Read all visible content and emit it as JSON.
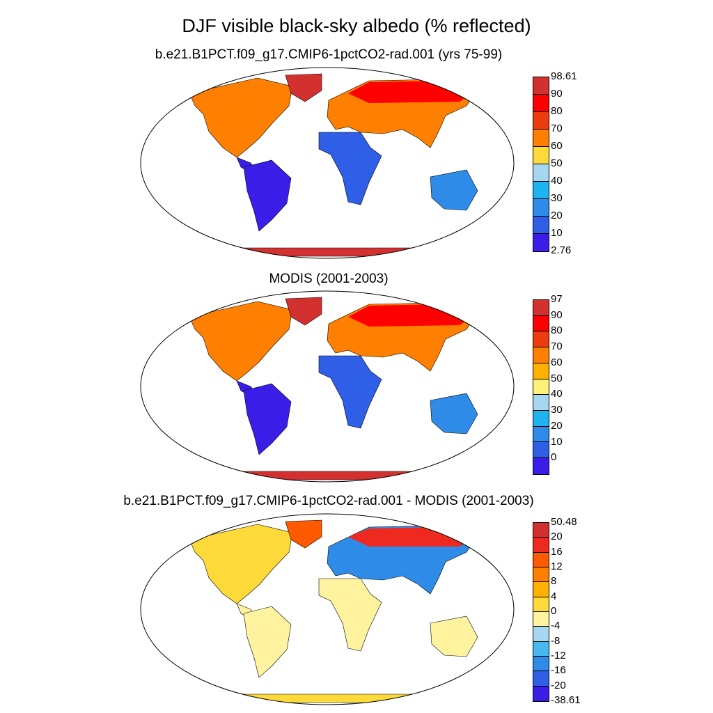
{
  "title": "DJF visible black-sky albedo (% reflected)",
  "panels": [
    {
      "title": "b.e21.B1PCT.f09_g17.CMIP6-1pctCO2-rad.001 (yrs 75-99)",
      "colorbar": {
        "labels": [
          "98.61",
          "90",
          "80",
          "70",
          "60",
          "50",
          "40",
          "30",
          "20",
          "10",
          "2.76"
        ],
        "colors": [
          "#d3312f",
          "#ff0000",
          "#ef3b10",
          "#ff8000",
          "#fdd93a",
          "#a6d6f0",
          "#1eb4f0",
          "#2e8ce8",
          "#2f5fe6",
          "#3a1ee8"
        ]
      }
    },
    {
      "title": "MODIS (2001-2003)",
      "colorbar": {
        "labels": [
          "97",
          "90",
          "80",
          "70",
          "60",
          "50",
          "40",
          "30",
          "20",
          "10",
          "0"
        ],
        "colors": [
          "#d3312f",
          "#ff0000",
          "#ef3b10",
          "#ff8000",
          "#ffb000",
          "#fff07a",
          "#a6d6f0",
          "#1eb4f0",
          "#2e8ce8",
          "#2f5fe6",
          "#3a1ee8"
        ]
      }
    },
    {
      "title": "b.e21.B1PCT.f09_g17.CMIP6-1pctCO2-rad.001 - MODIS (2001-2003)",
      "colorbar": {
        "labels": [
          "50.48",
          "20",
          "16",
          "12",
          "8",
          "4",
          "0",
          "-4",
          "-8",
          "-12",
          "-16",
          "-20",
          "-38.61"
        ],
        "colors": [
          "#d3312f",
          "#ee2a20",
          "#ff5a00",
          "#ff8000",
          "#ffb000",
          "#fdd93a",
          "#fff3a0",
          "#a6d6f0",
          "#48b8f0",
          "#2e8ce8",
          "#2f5fe6",
          "#3a1ee8"
        ]
      }
    }
  ]
}
